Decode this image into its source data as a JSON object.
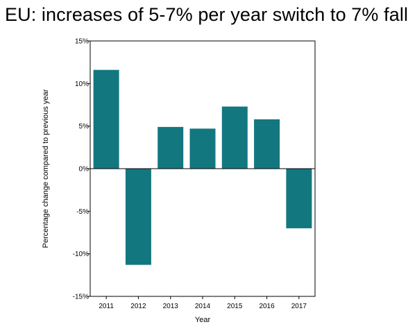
{
  "chart_data": {
    "type": "bar",
    "title": "EU: increases of 5-7% per year switch to 7% fall",
    "xlabel": "Year",
    "ylabel": "Percentage change compared to previous year",
    "categories": [
      "2011",
      "2012",
      "2013",
      "2014",
      "2015",
      "2016",
      "2017"
    ],
    "values": [
      11.6,
      -11.3,
      4.9,
      4.7,
      7.3,
      5.8,
      -7.0
    ],
    "ylim": [
      -15,
      15
    ],
    "yticks": [
      15,
      10,
      5,
      0,
      -5,
      -10,
      -15
    ],
    "ytick_labels": [
      "15%",
      "10%",
      "5%",
      "0%",
      "-5%",
      "-10%",
      "-15%"
    ],
    "grid": false,
    "legend": "none",
    "bar_color": "#137780",
    "axis_color": "#000000"
  }
}
